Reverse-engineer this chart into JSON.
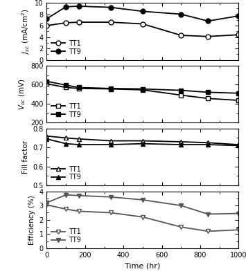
{
  "time": [
    0,
    100,
    167,
    333,
    500,
    700,
    840,
    1000
  ],
  "jsc_tt1": [
    6.0,
    6.5,
    6.6,
    6.6,
    6.3,
    4.3,
    4.1,
    4.4
  ],
  "jsc_tt9": [
    7.2,
    9.3,
    9.4,
    9.2,
    8.5,
    8.0,
    6.8,
    7.7
  ],
  "voc_tt1": [
    610,
    570,
    560,
    555,
    545,
    490,
    455,
    435
  ],
  "voc_tt9": [
    635,
    595,
    570,
    560,
    555,
    540,
    520,
    510
  ],
  "ff_tt1": [
    0.76,
    0.75,
    0.745,
    0.735,
    0.735,
    0.73,
    0.725,
    0.715
  ],
  "ff_tt9": [
    0.745,
    0.72,
    0.715,
    0.715,
    0.72,
    0.715,
    0.715,
    0.71
  ],
  "eff_tt1": [
    3.05,
    2.75,
    2.6,
    2.5,
    2.2,
    1.5,
    1.2,
    1.3
  ],
  "eff_tt9": [
    3.2,
    3.75,
    3.7,
    3.6,
    3.4,
    3.0,
    2.4,
    2.45
  ],
  "xlabel": "Time (hr)",
  "ylabel_jsc": "$J_{sc}$ (mA/cm$^2$)",
  "ylabel_voc": "$V_{oc}$ (mV)",
  "ylabel_ff": "Fill factor",
  "ylabel_eff": "Efficiency (%)",
  "jsc_ylim": [
    0,
    10
  ],
  "jsc_yticks": [
    0,
    2,
    4,
    6,
    8,
    10
  ],
  "voc_ylim": [
    200,
    800
  ],
  "voc_yticks": [
    200,
    400,
    600,
    800
  ],
  "ff_ylim": [
    0.5,
    0.8
  ],
  "ff_yticks": [
    0.5,
    0.6,
    0.7,
    0.8
  ],
  "eff_ylim": [
    0,
    4
  ],
  "eff_yticks": [
    0,
    1,
    2,
    3,
    4
  ],
  "xlim": [
    0,
    1000
  ],
  "xticks": [
    0,
    200,
    400,
    600,
    800,
    1000
  ],
  "color_black": "#000000",
  "color_gray": "#555555",
  "legend_tt1": "TT1",
  "legend_tt9": "TT9"
}
